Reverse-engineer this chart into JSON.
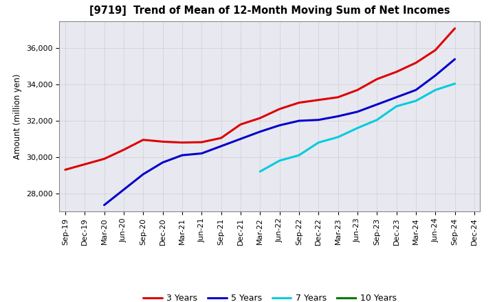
{
  "title": "[9719]  Trend of Mean of 12-Month Moving Sum of Net Incomes",
  "ylabel": "Amount (million yen)",
  "fig_background": "#ffffff",
  "plot_background": "#e8e8f0",
  "grid_color": "#aaaaaa",
  "ylim": [
    27000,
    37500
  ],
  "yticks": [
    28000,
    30000,
    32000,
    34000,
    36000
  ],
  "series": {
    "3 Years": {
      "color": "#dd0000",
      "data": {
        "Sep-19": 29300,
        "Dec-19": 29600,
        "Mar-20": 29900,
        "Jun-20": 30400,
        "Sep-20": 30950,
        "Dec-20": 30850,
        "Mar-21": 30800,
        "Jun-21": 30820,
        "Sep-21": 31050,
        "Dec-21": 31800,
        "Mar-22": 32150,
        "Jun-22": 32650,
        "Sep-22": 33000,
        "Dec-22": 33150,
        "Mar-23": 33300,
        "Jun-23": 33700,
        "Sep-23": 34300,
        "Dec-23": 34700,
        "Mar-24": 35200,
        "Jun-24": 35900,
        "Sep-24": 37100
      }
    },
    "5 Years": {
      "color": "#0000cc",
      "data": {
        "Mar-20": 27350,
        "Jun-20": 28200,
        "Sep-20": 29050,
        "Dec-20": 29700,
        "Mar-21": 30100,
        "Jun-21": 30200,
        "Sep-21": 30600,
        "Dec-21": 31000,
        "Mar-22": 31400,
        "Jun-22": 31750,
        "Sep-22": 32000,
        "Dec-22": 32050,
        "Mar-23": 32250,
        "Jun-23": 32500,
        "Sep-23": 32900,
        "Dec-23": 33300,
        "Mar-24": 33700,
        "Jun-24": 34500,
        "Sep-24": 35400
      }
    },
    "7 Years": {
      "color": "#00ccdd",
      "data": {
        "Mar-22": 29200,
        "Jun-22": 29800,
        "Sep-22": 30100,
        "Dec-22": 30800,
        "Mar-23": 31100,
        "Jun-23": 31600,
        "Sep-23": 32050,
        "Dec-23": 32800,
        "Mar-24": 33100,
        "Jun-24": 33700,
        "Sep-24": 34050
      }
    },
    "10 Years": {
      "color": "#007700",
      "data": {}
    }
  },
  "xtick_labels": [
    "Sep-19",
    "Dec-19",
    "Mar-20",
    "Jun-20",
    "Sep-20",
    "Dec-20",
    "Mar-21",
    "Jun-21",
    "Sep-21",
    "Dec-21",
    "Mar-22",
    "Jun-22",
    "Sep-22",
    "Dec-22",
    "Mar-23",
    "Jun-23",
    "Sep-23",
    "Dec-23",
    "Mar-24",
    "Jun-24",
    "Sep-24",
    "Dec-24"
  ],
  "legend_entries": [
    "3 Years",
    "5 Years",
    "7 Years",
    "10 Years"
  ],
  "legend_colors": [
    "#dd0000",
    "#0000cc",
    "#00ccdd",
    "#007700"
  ],
  "title_fontsize": 10.5,
  "ylabel_fontsize": 8.5,
  "tick_fontsize": 8,
  "legend_fontsize": 9,
  "linewidth": 2.2
}
